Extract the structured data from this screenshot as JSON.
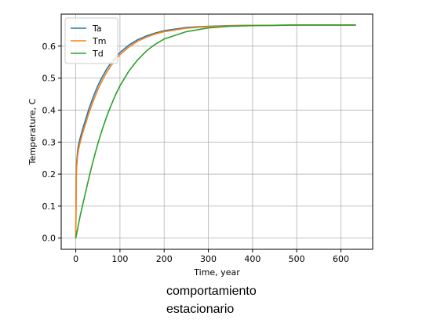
{
  "chart_data": {
    "type": "line",
    "xlabel": "Time, year",
    "ylabel": "Temperature, C",
    "xlim": [
      -33,
      672
    ],
    "ylim": [
      -0.035,
      0.7
    ],
    "xticks": [
      "0",
      "100",
      "200",
      "300",
      "400",
      "500",
      "600"
    ],
    "yticks": [
      "0.0",
      "0.1",
      "0.2",
      "0.3",
      "0.4",
      "0.5",
      "0.6"
    ],
    "grid": true,
    "legend_position": "top-left",
    "series": [
      {
        "name": "Ta",
        "color": "#1f77b4",
        "x": [
          0,
          1,
          2,
          4,
          6,
          8,
          10,
          15,
          20,
          30,
          40,
          50,
          60,
          70,
          80,
          90,
          100,
          120,
          140,
          160,
          180,
          200,
          250,
          300,
          350,
          400,
          450,
          500,
          550,
          600,
          634
        ],
        "y": [
          0.0,
          0.2,
          0.235,
          0.27,
          0.29,
          0.302,
          0.313,
          0.338,
          0.36,
          0.405,
          0.443,
          0.476,
          0.504,
          0.528,
          0.548,
          0.565,
          0.58,
          0.603,
          0.62,
          0.632,
          0.641,
          0.648,
          0.658,
          0.662,
          0.664,
          0.665,
          0.665,
          0.666,
          0.666,
          0.666,
          0.666
        ]
      },
      {
        "name": "Tm",
        "color": "#ff7f0e",
        "x": [
          0,
          1,
          2,
          4,
          6,
          8,
          10,
          15,
          20,
          30,
          40,
          50,
          60,
          70,
          80,
          90,
          100,
          120,
          140,
          160,
          180,
          200,
          250,
          300,
          350,
          400,
          450,
          500,
          550,
          600,
          634
        ],
        "y": [
          0.0,
          0.18,
          0.22,
          0.255,
          0.275,
          0.288,
          0.3,
          0.325,
          0.348,
          0.392,
          0.43,
          0.464,
          0.493,
          0.518,
          0.539,
          0.557,
          0.573,
          0.597,
          0.615,
          0.628,
          0.638,
          0.645,
          0.656,
          0.661,
          0.663,
          0.665,
          0.665,
          0.666,
          0.666,
          0.666,
          0.666
        ]
      },
      {
        "name": "Td",
        "color": "#2ca02c",
        "x": [
          0,
          5,
          10,
          20,
          30,
          40,
          50,
          60,
          70,
          80,
          90,
          100,
          120,
          140,
          160,
          180,
          200,
          250,
          300,
          350,
          400,
          450,
          500,
          550,
          600,
          634
        ],
        "y": [
          0.0,
          0.035,
          0.07,
          0.13,
          0.19,
          0.245,
          0.295,
          0.34,
          0.38,
          0.415,
          0.448,
          0.476,
          0.522,
          0.557,
          0.585,
          0.606,
          0.622,
          0.645,
          0.657,
          0.662,
          0.664,
          0.665,
          0.666,
          0.666,
          0.666,
          0.666
        ]
      }
    ]
  },
  "caption": {
    "line1": "comportamiento",
    "line2": "estacionario"
  }
}
